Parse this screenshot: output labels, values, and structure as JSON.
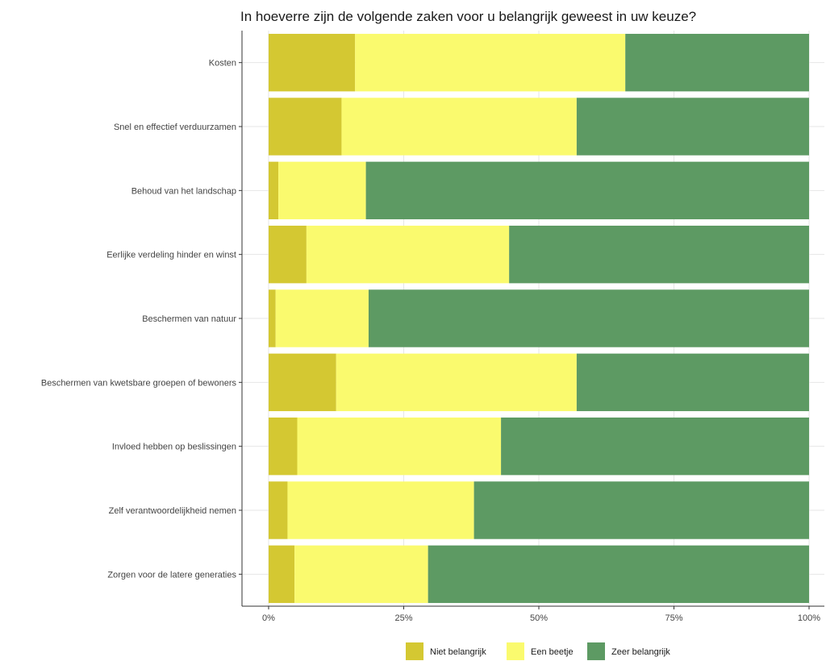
{
  "chart_data": {
    "type": "bar",
    "orientation": "horizontal",
    "stacked": true,
    "normalized": true,
    "title": "In hoeverre zijn de volgende zaken voor u belangrijk geweest in uw keuze?",
    "categories": [
      "Kosten",
      "Snel en effectief verduurzamen",
      "Behoud van het landschap",
      "Eerlijke verdeling hinder en winst",
      "Beschermen van natuur",
      "Beschermen van kwetsbare groepen of bewoners",
      "Invloed hebben op beslissingen",
      "Zelf verantwoordelijkheid nemen",
      "Zorgen voor de latere generaties"
    ],
    "series": [
      {
        "name": "Niet belangrijk",
        "color": "#d4c832",
        "values": [
          16,
          13.5,
          1.8,
          7,
          1.3,
          12.5,
          5.3,
          3.5,
          4.8
        ]
      },
      {
        "name": "Een beetje",
        "color": "#fafa6e",
        "values": [
          50,
          43.5,
          16.2,
          37.5,
          17.2,
          44.5,
          37.7,
          34.5,
          24.7
        ]
      },
      {
        "name": "Zeer belangrijk",
        "color": "#5d9a63",
        "values": [
          34,
          43,
          82,
          55.5,
          81.5,
          43,
          57,
          62,
          70.5
        ]
      }
    ],
    "xlim": [
      0,
      100
    ],
    "x_ticks": [
      "0%",
      "25%",
      "50%",
      "75%",
      "100%"
    ],
    "xlabel": "",
    "ylabel": "",
    "grid": true,
    "legend_position": "bottom"
  }
}
